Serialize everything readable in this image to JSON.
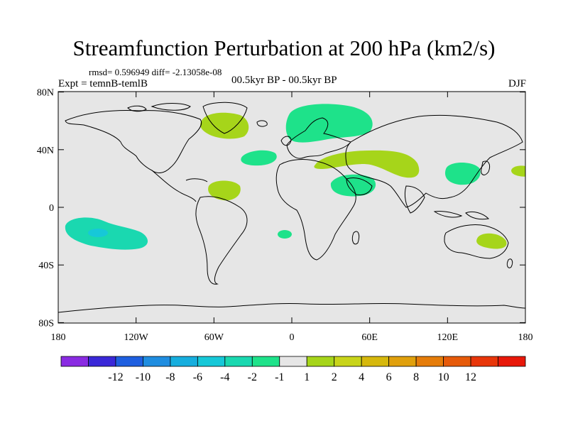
{
  "title": "Streamfunction Perturbation at 200 hPa (km2/s)",
  "stats": "rmsd= 0.596949  diff= -2.13058e-08",
  "left_label": "Expt = temnB-temlB",
  "center_label": "00.5kyr BP - 00.5kyr BP",
  "right_label": "DJF",
  "lat_ticks": [
    {
      "label": "80N",
      "lat": 80
    },
    {
      "label": "40N",
      "lat": 40
    },
    {
      "label": "0",
      "lat": 0
    },
    {
      "label": "40S",
      "lat": -40
    },
    {
      "label": "80S",
      "lat": -80
    }
  ],
  "lon_ticks": [
    {
      "label": "180",
      "lon": -180
    },
    {
      "label": "120W",
      "lon": -120
    },
    {
      "label": "60W",
      "lon": -60
    },
    {
      "label": "0",
      "lon": 0
    },
    {
      "label": "60E",
      "lon": 60
    },
    {
      "label": "120E",
      "lon": 120
    },
    {
      "label": "180",
      "lon": 180
    }
  ],
  "colorbar": {
    "colors": [
      "#8a2be2",
      "#3a28d8",
      "#1e5fe0",
      "#1f8de0",
      "#16aede",
      "#16c8d8",
      "#1ad8b0",
      "#1ee28a",
      "#e6e6e6",
      "#a6d51a",
      "#c8d41a",
      "#d6b80c",
      "#e0a00c",
      "#e57c0a",
      "#e65a0a",
      "#e8360a",
      "#e8180a"
    ],
    "labels": [
      "-12",
      "-10",
      "-8",
      "-6",
      "-4",
      "-2",
      "-1",
      "1",
      "2",
      "4",
      "6",
      "8",
      "10",
      "12"
    ]
  },
  "colors": {
    "ocean_bg": "#e6e6e6",
    "positive": "#a6d51a",
    "negative_weak": "#1ee28a",
    "negative": "#1ad8b0",
    "negative_strong": "#16c8d8"
  }
}
